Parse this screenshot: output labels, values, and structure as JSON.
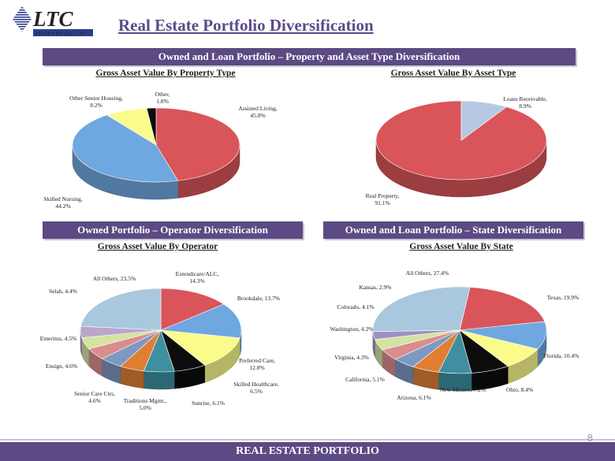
{
  "logo": {
    "letters": "LTC",
    "tagline": "PROPERTIES, INC."
  },
  "page_title": "Real Estate Portfolio Diversification",
  "banners": {
    "top": "Owned and Loan Portfolio – Property and Asset Type Diversification",
    "operator": "Owned Portfolio – Operator Diversification",
    "state": "Owned and Loan Portfolio – State Diversification"
  },
  "footer": "REAL ESTATE PORTFOLIO",
  "page_number": "8",
  "colors": {
    "red": "#d9555a",
    "blue": "#6fa7e0",
    "yellow": "#fbfb8c",
    "black": "#0d0d0d",
    "teal": "#3f8fa0",
    "orange": "#e07e33",
    "slate": "#7d98c3",
    "salmon": "#d98d8d",
    "lightgreen": "#d4e3a2",
    "lavender": "#b9a6cd",
    "lightblue": "#a9c8dd",
    "lightsteel": "#b7c9e2",
    "purple": "#9f8fc4"
  },
  "chart_data": [
    {
      "type": "pie",
      "title": "Gross Asset Value By Property Type",
      "categories": [
        "Assisted Living",
        "Skilled Nursing",
        "Other Senior Housing",
        "Other"
      ],
      "values": [
        45.8,
        44.2,
        8.2,
        1.8
      ],
      "labels": [
        "Assisted Living, 45.8%",
        "Skilled Nursing, 44.2%",
        "Other Senior Housing, 8.2%",
        "Other, 1.8%"
      ],
      "colors": [
        "red",
        "blue",
        "yellow",
        "black"
      ]
    },
    {
      "type": "pie",
      "title": "Gross Asset Value By Asset Type",
      "categories": [
        "Real Property",
        "Loans Receivable"
      ],
      "values": [
        91.1,
        8.9
      ],
      "labels": [
        "Real Property, 91.1%",
        "Loans Receivable, 8.9%"
      ],
      "colors": [
        "red",
        "lightsteel"
      ]
    },
    {
      "type": "pie",
      "title": "Gross Asset Value By Operator",
      "categories": [
        "Extendicare/ALC",
        "Brookdale",
        "Preferred Care",
        "Skilled Healthcare",
        "Sunrise",
        "Traditions Mgmt.",
        "Senior Care Ctrs.",
        "Ensign",
        "Emeritus",
        "Selah",
        "All Others"
      ],
      "values": [
        14.3,
        13.7,
        12.8,
        6.5,
        6.1,
        5.0,
        4.6,
        4.6,
        4.5,
        4.4,
        23.5
      ],
      "labels": [
        "Extendicare/ALC, 14.3%",
        "Brookdale, 13.7%",
        "Preferred Care, 12.8%",
        "Skilled Healthcare, 6.5%",
        "Sunrise, 6.1%",
        "Traditions Mgmt., 5.0%",
        "Senior Care Ctrs, 4.6%",
        "Ensign, 4.6%",
        "Emeritus, 4.5%",
        "Selah, 4.4%",
        "All Others, 23.5%"
      ],
      "colors": [
        "red",
        "blue",
        "yellow",
        "black",
        "teal",
        "orange",
        "slate",
        "salmon",
        "lightgreen",
        "lavender",
        "lightblue"
      ]
    },
    {
      "type": "pie",
      "title": "Gross Asset Value By State",
      "categories": [
        "Texas",
        "Florida",
        "Ohio",
        "New Mexico",
        "Arizona",
        "California",
        "Virginia",
        "Washington",
        "Colorado",
        "Kansas",
        "All Others"
      ],
      "values": [
        19.9,
        10.4,
        8.4,
        7.2,
        6.1,
        5.1,
        4.3,
        4.2,
        4.1,
        2.9,
        27.4
      ],
      "labels": [
        "Texas, 19.9%",
        "Florida, 10.4%",
        "Ohio, 8.4%",
        "New Mexico, 7.2%",
        "Arizona, 6.1%",
        "California, 5.1%",
        "Virginia, 4.3%",
        "Washington, 4.2%",
        "Colorado, 4.1%",
        "Kansas, 2.9%",
        "All Others, 27.4%"
      ],
      "colors": [
        "red",
        "blue",
        "yellow",
        "black",
        "teal",
        "orange",
        "slate",
        "salmon",
        "lightgreen",
        "purple",
        "lightblue"
      ]
    }
  ]
}
